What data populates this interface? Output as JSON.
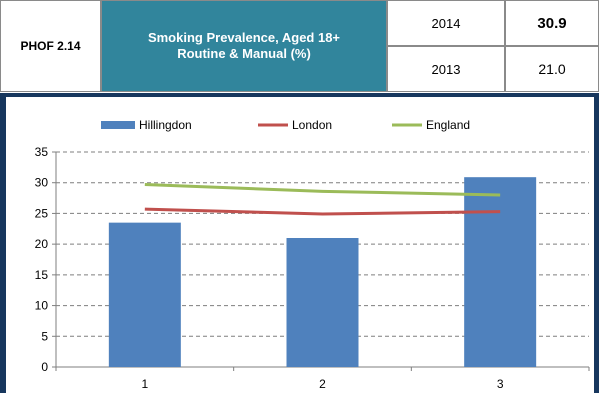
{
  "header": {
    "code": "PHOF 2.14",
    "title_line1": "Smoking Prevalence, Aged 18+",
    "title_line2": "Routine & Manual (%)",
    "rows": [
      {
        "year": "2014",
        "value": "30.9"
      },
      {
        "year": "2013",
        "value": "21.0"
      }
    ]
  },
  "chart_data": {
    "type": "bar",
    "categories": [
      "1",
      "2",
      "3"
    ],
    "series": [
      {
        "name": "Hillingdon",
        "kind": "bar",
        "color": "#4f81bd",
        "values": [
          23.5,
          21.0,
          30.9
        ]
      },
      {
        "name": "London",
        "kind": "line",
        "color": "#c0504d",
        "values": [
          25.7,
          24.9,
          25.3
        ]
      },
      {
        "name": "England",
        "kind": "line",
        "color": "#9bbb59",
        "values": [
          29.7,
          28.6,
          28.0
        ]
      }
    ],
    "ylim": [
      0,
      35
    ],
    "yticks": [
      "0",
      "5",
      "10",
      "15",
      "20",
      "25",
      "30",
      "35"
    ],
    "grid": true,
    "legend": "top"
  }
}
